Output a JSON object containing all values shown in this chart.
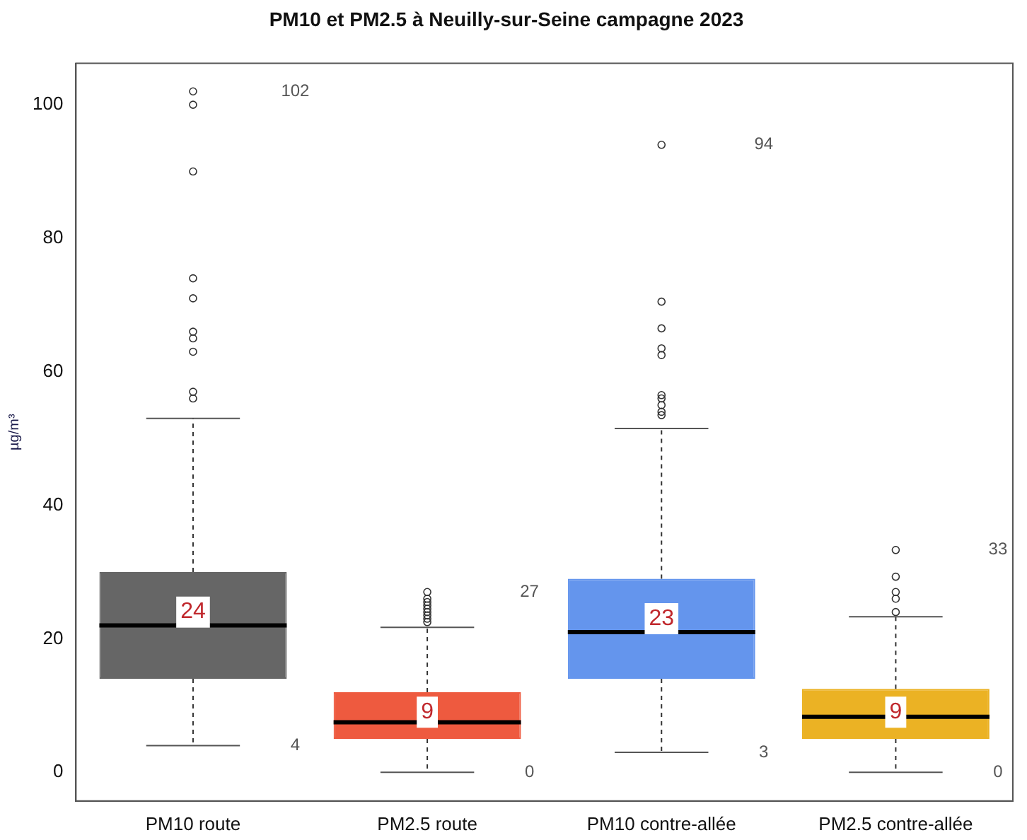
{
  "chart_data": {
    "type": "box",
    "title": "PM10 et PM2.5 à Neuilly-sur-Seine campagne 2023",
    "ylabel": "µg/m³",
    "categories": [
      "PM10 route",
      "PM2.5 route",
      "PM10 contre-allée",
      "PM2.5 contre-allée"
    ],
    "colors": [
      "#666666",
      "#ee5a3f",
      "#6495ed",
      "#ebb224"
    ],
    "boxes": [
      {
        "low": 4,
        "q1": 14,
        "median": 22,
        "q3": 30,
        "high": 53,
        "mean": 24,
        "outliers": [
          56,
          57,
          63,
          65,
          66,
          71,
          74,
          90,
          100,
          102
        ]
      },
      {
        "low": 0,
        "q1": 5,
        "median": 7.5,
        "q3": 12,
        "high": 21.7,
        "mean": 9,
        "outliers": [
          22.5,
          23,
          23.5,
          24,
          24.5,
          25,
          25.5,
          26,
          27
        ]
      },
      {
        "low": 3,
        "q1": 14,
        "median": 21,
        "q3": 29,
        "high": 51.5,
        "mean": 23,
        "outliers": [
          53.5,
          54,
          55,
          56,
          56.5,
          62.5,
          63.5,
          66.5,
          70.5,
          94
        ]
      },
      {
        "low": 0,
        "q1": 5,
        "median": 8.3,
        "q3": 12.5,
        "high": 23.3,
        "mean": 9,
        "outliers": [
          24,
          26,
          27,
          29.3,
          33.3
        ]
      }
    ],
    "value_labels": [
      "24",
      "9",
      "23",
      "9"
    ],
    "annotations": [
      "102",
      "4",
      "27",
      "0",
      "94",
      "3",
      "33",
      "0"
    ],
    "ylim": [
      -4.3,
      106.2
    ],
    "yticks": [
      0,
      20,
      40,
      60,
      80,
      100
    ],
    "grid": false,
    "legend": false
  }
}
